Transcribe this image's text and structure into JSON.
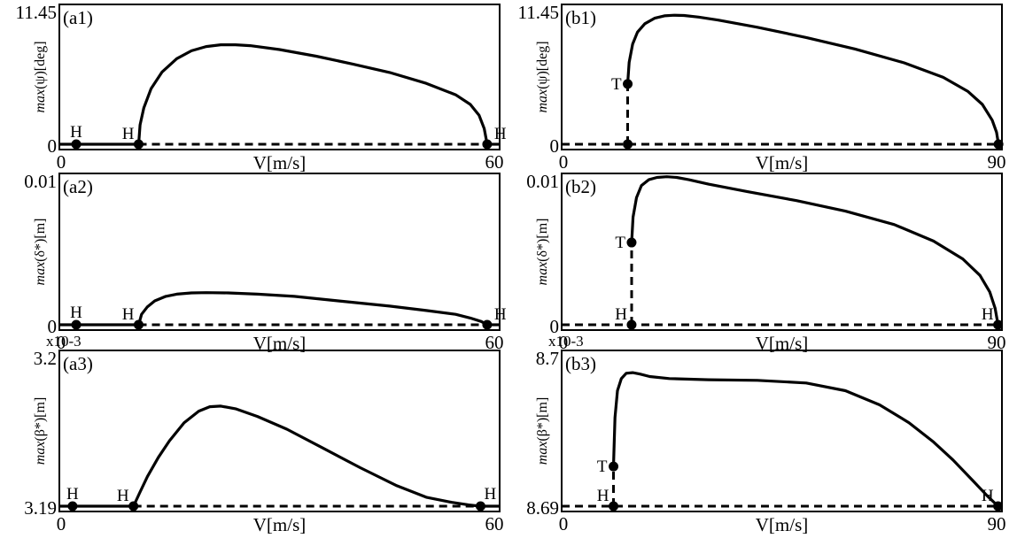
{
  "chart_data": [
    {
      "id": "a1",
      "type": "line",
      "panel_label": "(a1)",
      "ylabel_prefix": "max",
      "ylabel_rest": "(ψ)[deg]",
      "xlabel": "V[m/s]",
      "xlim": [
        0,
        60
      ],
      "ylim": [
        0,
        11.45
      ],
      "x_ticks": [
        "0",
        "60"
      ],
      "y_ticks": [
        "11.45",
        "0"
      ],
      "exponent": "",
      "series": [
        {
          "style": "solid",
          "x": [
            0,
            10.8
          ],
          "y": [
            0,
            0
          ]
        },
        {
          "style": "solid",
          "x": [
            10.8,
            11.0,
            11.5,
            12.5,
            14,
            16,
            18,
            20,
            22,
            24,
            26,
            30,
            35,
            40,
            45,
            50,
            54,
            56,
            57.2,
            57.9,
            58.3
          ],
          "y": [
            0,
            1.6,
            3.0,
            4.6,
            6.0,
            7.1,
            7.75,
            8.1,
            8.25,
            8.25,
            8.18,
            7.85,
            7.3,
            6.65,
            5.95,
            5.05,
            4.1,
            3.3,
            2.4,
            1.3,
            0
          ]
        },
        {
          "style": "solid",
          "x": [
            58.3,
            60
          ],
          "y": [
            0,
            0
          ]
        },
        {
          "style": "dashed",
          "x": [
            10.8,
            58.3
          ],
          "y": [
            0,
            0
          ]
        }
      ],
      "points": [
        {
          "label": "H",
          "x": 2.3,
          "y": 0,
          "anchor": "above"
        },
        {
          "label": "H",
          "x": 10.8,
          "y": 0,
          "anchor": "above-left"
        },
        {
          "label": "H",
          "x": 58.3,
          "y": 0,
          "anchor": "right"
        }
      ]
    },
    {
      "id": "b1",
      "type": "line",
      "panel_label": "(b1)",
      "ylabel_prefix": "max",
      "ylabel_rest": "(ψ)[deg]",
      "xlabel": "V[m/s]",
      "xlim": [
        0,
        90
      ],
      "ylim": [
        0,
        11.45
      ],
      "x_ticks": [
        "0",
        "90"
      ],
      "y_ticks": [
        "11.45",
        "0"
      ],
      "exponent": "",
      "series": [
        {
          "style": "solid",
          "x": [
            13.5,
            13.8,
            14.5,
            15.5,
            17,
            19,
            21,
            23,
            25,
            28,
            32,
            40,
            50,
            60,
            70,
            78,
            83,
            86,
            88,
            88.9,
            89.3
          ],
          "y": [
            5.0,
            6.8,
            8.3,
            9.3,
            10.0,
            10.45,
            10.65,
            10.7,
            10.68,
            10.55,
            10.3,
            9.7,
            8.85,
            7.9,
            6.75,
            5.55,
            4.4,
            3.3,
            2.0,
            1.0,
            0
          ]
        },
        {
          "style": "dashed",
          "x": [
            13.5,
            13.5
          ],
          "y": [
            0,
            5.0
          ]
        },
        {
          "style": "dashed",
          "x": [
            0,
            90
          ],
          "y": [
            0,
            0
          ]
        }
      ],
      "points": [
        {
          "label": "T",
          "x": 13.5,
          "y": 5.0,
          "anchor": "left"
        },
        {
          "label": "",
          "x": 13.5,
          "y": 0,
          "anchor": "none"
        },
        {
          "label": "",
          "x": 89.3,
          "y": 0,
          "anchor": "none"
        }
      ]
    },
    {
      "id": "a2",
      "type": "line",
      "panel_label": "(a2)",
      "ylabel_prefix": "max",
      "ylabel_rest": "(δ*)[m]",
      "xlabel": "V[m/s]",
      "xlim": [
        0,
        60
      ],
      "ylim": [
        0,
        0.01
      ],
      "x_ticks": [
        "0",
        "60"
      ],
      "y_ticks": [
        "0.01",
        "0"
      ],
      "exponent": "",
      "series": [
        {
          "style": "solid",
          "x": [
            0,
            10.8
          ],
          "y": [
            0,
            0
          ]
        },
        {
          "style": "solid",
          "x": [
            10.8,
            11.2,
            12,
            13,
            14.5,
            16,
            18,
            20,
            23,
            27,
            32,
            38,
            45,
            50,
            54,
            56,
            57.5,
            58.3
          ],
          "y": [
            0,
            0.0007,
            0.0012,
            0.0016,
            0.0019,
            0.00205,
            0.00213,
            0.00215,
            0.00213,
            0.00205,
            0.0019,
            0.0016,
            0.00125,
            0.00095,
            0.0007,
            0.00045,
            0.00022,
            0
          ]
        },
        {
          "style": "solid",
          "x": [
            58.3,
            60
          ],
          "y": [
            0,
            0
          ]
        },
        {
          "style": "dashed",
          "x": [
            10.8,
            58.3
          ],
          "y": [
            0,
            0
          ]
        }
      ],
      "points": [
        {
          "label": "H",
          "x": 2.3,
          "y": 0,
          "anchor": "above"
        },
        {
          "label": "H",
          "x": 10.8,
          "y": 0,
          "anchor": "above-left"
        },
        {
          "label": "H",
          "x": 58.3,
          "y": 0,
          "anchor": "right"
        }
      ]
    },
    {
      "id": "b2",
      "type": "line",
      "panel_label": "(b2)",
      "ylabel_prefix": "max",
      "ylabel_rest": "(δ*)[m]",
      "xlabel": "V[m/s]",
      "xlim": [
        0,
        90
      ],
      "ylim": [
        0,
        0.01
      ],
      "x_ticks": [
        "0",
        "90"
      ],
      "y_ticks": [
        "0.01",
        "0"
      ],
      "exponent": "",
      "series": [
        {
          "style": "solid",
          "x": [
            14.3,
            14.6,
            15.3,
            16.3,
            17.8,
            19.5,
            21.5,
            23.5,
            26,
            30,
            38,
            48,
            58,
            68,
            76,
            82,
            85.5,
            87.5,
            88.6,
            89.2
          ],
          "y": [
            0.0055,
            0.0072,
            0.0085,
            0.0093,
            0.0097,
            0.00985,
            0.0099,
            0.00985,
            0.0097,
            0.0094,
            0.0089,
            0.0083,
            0.0076,
            0.0067,
            0.0056,
            0.0044,
            0.0033,
            0.0022,
            0.0011,
            0
          ]
        },
        {
          "style": "dashed",
          "x": [
            14.3,
            14.3
          ],
          "y": [
            0,
            0.0055
          ]
        },
        {
          "style": "dashed",
          "x": [
            0,
            90
          ],
          "y": [
            0,
            0
          ]
        }
      ],
      "points": [
        {
          "label": "T",
          "x": 14.3,
          "y": 0.0055,
          "anchor": "left"
        },
        {
          "label": "H",
          "x": 14.3,
          "y": 0,
          "anchor": "above-left"
        },
        {
          "label": "H",
          "x": 89.2,
          "y": 0,
          "anchor": "above-left"
        }
      ]
    },
    {
      "id": "a3",
      "type": "line",
      "panel_label": "(a3)",
      "ylabel_prefix": "max",
      "ylabel_rest": "(β*)[m]",
      "xlabel": "V[m/s]",
      "xlim": [
        0,
        60
      ],
      "ylim": [
        3.19,
        3.2
      ],
      "x_ticks": [
        "0",
        "60"
      ],
      "y_ticks": [
        "3.2",
        "3.19"
      ],
      "exponent": "x10-3",
      "series": [
        {
          "style": "solid",
          "x": [
            0,
            10.1
          ],
          "y": [
            3.19,
            3.19
          ]
        },
        {
          "style": "solid",
          "x": [
            10.1,
            11,
            12,
            13.5,
            15,
            17,
            19,
            20.5,
            22,
            24,
            27,
            31,
            36,
            41,
            46,
            50,
            53.5,
            55.8,
            57.4
          ],
          "y": [
            3.19,
            3.19092,
            3.19192,
            3.19317,
            3.19425,
            3.19542,
            3.19617,
            3.19646,
            3.1965,
            3.19633,
            3.19583,
            3.195,
            3.19375,
            3.1925,
            3.19133,
            3.19058,
            3.19025,
            3.19008,
            3.19
          ]
        },
        {
          "style": "solid",
          "x": [
            57.4,
            60
          ],
          "y": [
            3.19,
            3.19
          ]
        },
        {
          "style": "dashed",
          "x": [
            10.1,
            57.4
          ],
          "y": [
            3.19,
            3.19
          ]
        }
      ],
      "points": [
        {
          "label": "H",
          "x": 1.8,
          "y": 3.19,
          "anchor": "above"
        },
        {
          "label": "H",
          "x": 10.1,
          "y": 3.19,
          "anchor": "above-left"
        },
        {
          "label": "H",
          "x": 57.4,
          "y": 3.19,
          "anchor": "above-right"
        }
      ]
    },
    {
      "id": "b3",
      "type": "line",
      "panel_label": "(b3)",
      "ylabel_prefix": "max",
      "ylabel_rest": "(β*)[m]",
      "xlabel": "V[m/s]",
      "xlim": [
        0,
        90
      ],
      "ylim": [
        8.69,
        8.7
      ],
      "x_ticks": [
        "0",
        "90"
      ],
      "y_ticks": [
        "8.7",
        "8.69"
      ],
      "exponent": "x10-3",
      "series": [
        {
          "style": "solid",
          "x": [
            10.6,
            10.9,
            11.4,
            12.2,
            13.2,
            14.5,
            16,
            18,
            22,
            30,
            40,
            50,
            58,
            65,
            71,
            76,
            80,
            84,
            87,
            89.2
          ],
          "y": [
            8.69258,
            8.69575,
            8.6975,
            8.69829,
            8.69863,
            8.69867,
            8.69858,
            8.69842,
            8.69829,
            8.69821,
            8.69817,
            8.698,
            8.6975,
            8.69658,
            8.69542,
            8.69417,
            8.693,
            8.69167,
            8.69067,
            8.69
          ]
        },
        {
          "style": "dashed",
          "x": [
            10.6,
            10.6
          ],
          "y": [
            8.69,
            8.69258
          ]
        },
        {
          "style": "dashed",
          "x": [
            0,
            90
          ],
          "y": [
            8.69,
            8.69
          ]
        }
      ],
      "points": [
        {
          "label": "T",
          "x": 10.6,
          "y": 8.69258,
          "anchor": "left"
        },
        {
          "label": "H",
          "x": 10.6,
          "y": 8.69,
          "anchor": "above-left"
        },
        {
          "label": "H",
          "x": 89.2,
          "y": 8.69,
          "anchor": "above-left"
        }
      ]
    }
  ]
}
